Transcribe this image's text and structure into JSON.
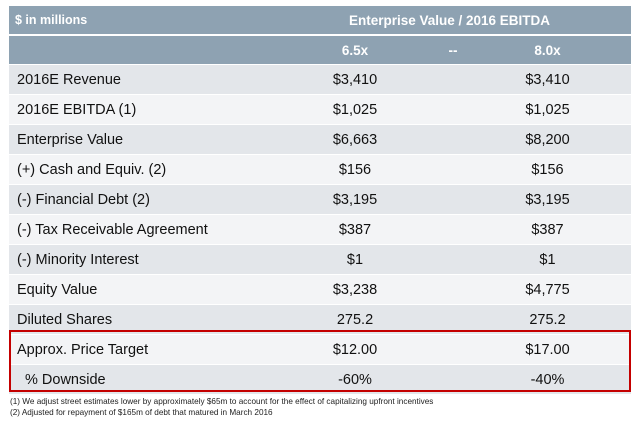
{
  "header": {
    "units": "$ in millions",
    "group_title": "Enterprise Value / 2016 EBITDA",
    "col_low": "6.5x",
    "col_sep": "--",
    "col_high": "8.0x"
  },
  "rows": [
    {
      "label": "2016E Revenue",
      "low": "$3,410",
      "high": "$3,410"
    },
    {
      "label": "2016E EBITDA (1)",
      "low": "$1,025",
      "high": "$1,025"
    },
    {
      "label": "Enterprise Value",
      "low": "$6,663",
      "high": "$8,200"
    },
    {
      "label": "(+)  Cash and Equiv. (2)",
      "low": "$156",
      "high": "$156"
    },
    {
      "label": "(-)   Financial Debt (2)",
      "low": "$3,195",
      "high": "$3,195"
    },
    {
      "label": "(-)   Tax Receivable Agreement",
      "low": "$387",
      "high": "$387"
    },
    {
      "label": "(-)   Minority Interest",
      "low": "$1",
      "high": "$1"
    },
    {
      "label": "Equity Value",
      "low": "$3,238",
      "high": "$4,775"
    },
    {
      "label": "Diluted Shares",
      "low": "275.2",
      "high": "275.2"
    },
    {
      "label": "Approx. Price Target",
      "low": "$12.00",
      "high": "$17.00"
    },
    {
      "label": "% Downside",
      "low": "-60%",
      "high": "-40%"
    }
  ],
  "footnotes": [
    "(1) We adjust street estimates lower by approximately $65m to account for the effect of capitalizing upfront incentives",
    "(2) Adjusted for repayment of $165m of debt that matured in March 2016"
  ],
  "colors": {
    "header_bg": "#8ea2b2",
    "row_odd": "#e3e6ea",
    "row_even": "#f3f4f6",
    "highlight_border": "#c40000"
  }
}
